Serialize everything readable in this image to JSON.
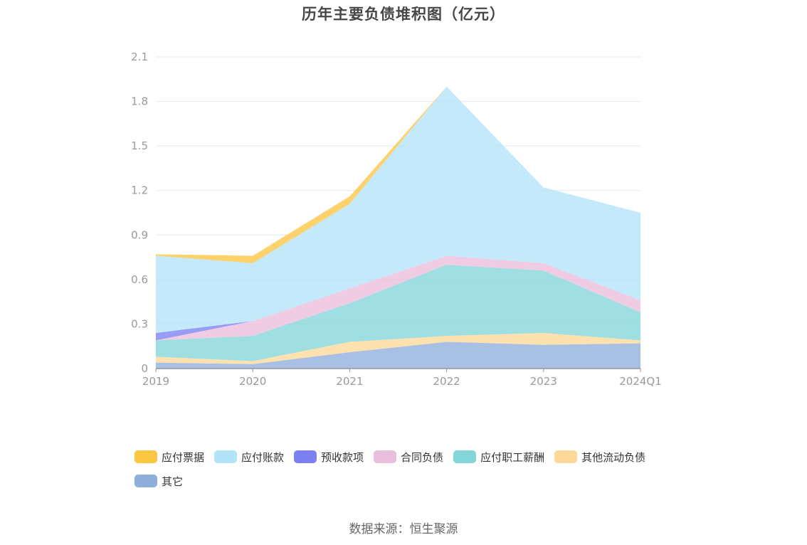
{
  "title": "历年主要负债堆积图（亿元）",
  "source": "数据来源：恒生聚源",
  "chart_data": {
    "type": "area",
    "stacked": true,
    "x": [
      "2019",
      "2020",
      "2021",
      "2022",
      "2023",
      "2024Q1"
    ],
    "ylim": [
      0,
      2.1
    ],
    "yticks": [
      "0",
      "0.3",
      "0.6",
      "0.9",
      "1.2",
      "1.5",
      "1.8",
      "2.1"
    ],
    "grid": true,
    "legend_position": "bottom",
    "series": [
      {
        "name": "其它",
        "color": "#8eaedb",
        "values": [
          0.04,
          0.03,
          0.11,
          0.18,
          0.16,
          0.17
        ]
      },
      {
        "name": "其他流动负债",
        "color": "#fcd999",
        "values": [
          0.04,
          0.02,
          0.07,
          0.04,
          0.08,
          0.02
        ]
      },
      {
        "name": "应付职工薪酬",
        "color": "#85d6d8",
        "values": [
          0.11,
          0.17,
          0.26,
          0.48,
          0.42,
          0.19
        ]
      },
      {
        "name": "合同负债",
        "color": "#eabedd",
        "values": [
          0.0,
          0.1,
          0.1,
          0.06,
          0.05,
          0.08
        ]
      },
      {
        "name": "预收款项",
        "color": "#7c80f2",
        "values": [
          0.05,
          0.0,
          0.0,
          0.0,
          0.0,
          0.0
        ]
      },
      {
        "name": "应付账款",
        "color": "#b3e3f9",
        "values": [
          0.52,
          0.39,
          0.57,
          1.14,
          0.51,
          0.59
        ]
      },
      {
        "name": "应付票据",
        "color": "#fcc542",
        "values": [
          0.01,
          0.05,
          0.05,
          0.0,
          0.0,
          0.0
        ]
      }
    ],
    "legend_order": [
      "应付票据",
      "应付账款",
      "预收款项",
      "合同负债",
      "应付职工薪酬",
      "其他流动负债",
      "其它"
    ]
  }
}
